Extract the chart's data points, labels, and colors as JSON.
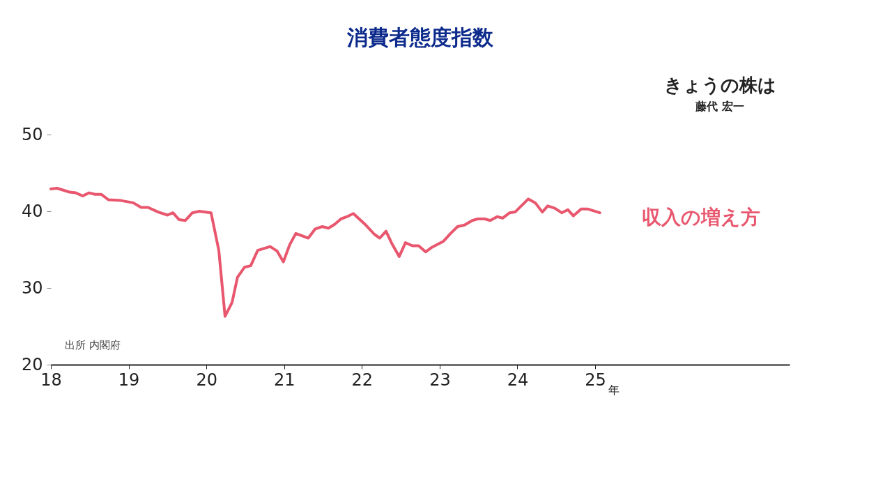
{
  "chart_data": {
    "type": "line",
    "title": "消費者態度指数",
    "x": [
      2018.0,
      2018.08,
      2018.24,
      2018.32,
      2018.41,
      2018.49,
      2018.57,
      2018.65,
      2018.74,
      2018.9,
      2019.06,
      2019.16,
      2019.25,
      2019.38,
      2019.5,
      2019.57,
      2019.65,
      2019.73,
      2019.82,
      2019.91,
      2020.06,
      2020.16,
      2020.24,
      2020.33,
      2020.4,
      2020.49,
      2020.57,
      2020.66,
      2020.82,
      2020.91,
      2020.99,
      2021.07,
      2021.15,
      2021.31,
      2021.4,
      2021.49,
      2021.57,
      2021.65,
      2021.73,
      2021.81,
      2021.89,
      2022.05,
      2022.16,
      2022.23,
      2022.31,
      2022.39,
      2022.48,
      2022.56,
      2022.65,
      2022.73,
      2022.82,
      2022.9,
      2023.05,
      2023.14,
      2023.23,
      2023.32,
      2023.42,
      2023.49,
      2023.58,
      2023.65,
      2023.74,
      2023.81,
      2023.9,
      2023.97,
      2024.14,
      2024.23,
      2024.32,
      2024.39,
      2024.48,
      2024.57,
      2024.65,
      2024.72,
      2024.82,
      2024.9,
      2025.06
    ],
    "series": [
      {
        "name": "収入の増え方",
        "color": "#e8576e",
        "values": [
          42.9,
          43.0,
          42.5,
          42.4,
          42.0,
          42.4,
          42.2,
          42.2,
          41.5,
          41.4,
          41.1,
          40.5,
          40.5,
          39.9,
          39.5,
          39.8,
          38.9,
          38.8,
          39.8,
          40.0,
          39.8,
          34.9,
          26.3,
          28.1,
          31.4,
          32.7,
          32.9,
          34.9,
          35.4,
          34.8,
          33.4,
          35.6,
          37.1,
          36.5,
          37.7,
          38.0,
          37.8,
          38.3,
          39.0,
          39.3,
          39.7,
          38.2,
          37.0,
          36.5,
          37.4,
          35.7,
          34.1,
          35.9,
          35.5,
          35.5,
          34.7,
          35.3,
          36.1,
          37.1,
          38.0,
          38.2,
          38.8,
          39.0,
          39.0,
          38.8,
          39.3,
          39.1,
          39.8,
          39.9,
          41.6,
          41.1,
          39.9,
          40.7,
          40.4,
          39.8,
          40.2,
          39.4,
          40.3,
          40.3,
          39.8
        ]
      }
    ],
    "xlim": [
      2018,
      2027.5
    ],
    "xticks": [
      {
        "value": 2018,
        "label": "18"
      },
      {
        "value": 2019,
        "label": "19"
      },
      {
        "value": 2020,
        "label": "20"
      },
      {
        "value": 2021,
        "label": "21"
      },
      {
        "value": 2022,
        "label": "22"
      },
      {
        "value": 2023,
        "label": "23"
      },
      {
        "value": 2024,
        "label": "24"
      },
      {
        "value": 2025,
        "label": "25"
      }
    ],
    "xlabel": "年",
    "ylim": [
      20,
      50
    ],
    "yticks": [
      20,
      30,
      40,
      50
    ],
    "grid": false,
    "legend": false,
    "marker": "none",
    "line_style": "solid",
    "annotations": [
      "出所 内閣府",
      "きょうの株は",
      "藤代 宏一"
    ]
  }
}
